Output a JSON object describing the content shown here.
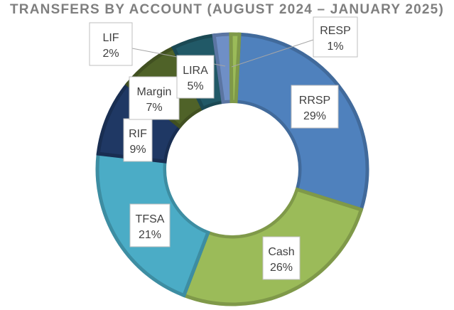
{
  "chart_data": {
    "type": "pie",
    "title": "TRANSFERS BY ACCOUNT (AUGUST 2024 – JANUARY 2025)",
    "categories": [
      "RRSP",
      "Cash",
      "TFSA",
      "RIF",
      "Margin",
      "LIRA",
      "LIF",
      "RESP"
    ],
    "values": [
      29,
      26,
      21,
      9,
      7,
      5,
      2,
      1
    ],
    "value_labels": [
      "29%",
      "26%",
      "21%",
      "9%",
      "7%",
      "5%",
      "2%",
      "1%"
    ],
    "colors": [
      "#4F81BD",
      "#9BBB59",
      "#4BACC6",
      "#1F3864",
      "#4F6228",
      "#215967",
      "#6F8FC6",
      "#9BBB59"
    ],
    "style": "doughnut",
    "legend": "none",
    "data_labels": "callouts"
  }
}
